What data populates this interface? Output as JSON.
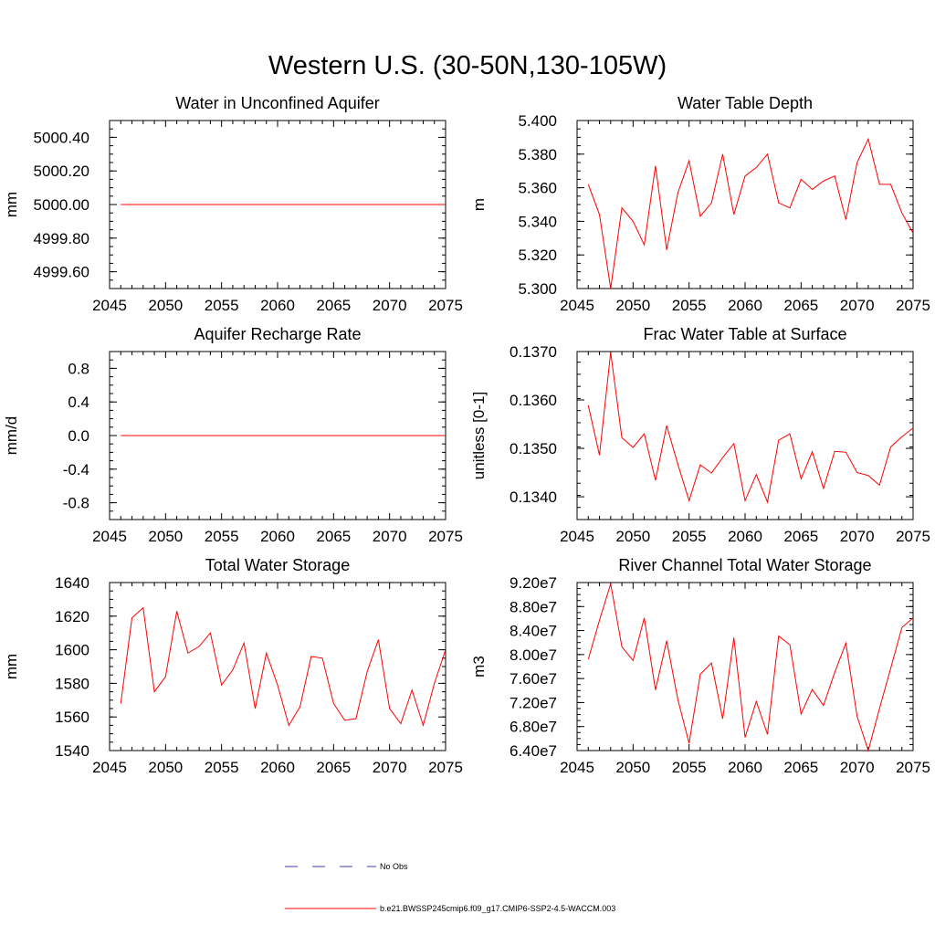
{
  "figure": {
    "title": "Western U.S. (30-50N,130-105W)"
  },
  "legend": {
    "entries": [
      {
        "label": "No Obs",
        "color": "#3b3bb0",
        "style": "dashed"
      },
      {
        "label": "b.e21.BWSSP245cmip6.f09_g17.CMIP6-SSP2-4.5-WACCM.003",
        "color": "#ff0000",
        "style": "solid"
      }
    ]
  },
  "chart_data": [
    {
      "type": "line",
      "title": "Water in Unconfined Aquifer",
      "ylabel": "mm",
      "xlim": [
        2045,
        2075
      ],
      "ylim": [
        4999.5,
        5000.5
      ],
      "x_ticks": [
        2045,
        2050,
        2055,
        2060,
        2065,
        2070,
        2075
      ],
      "y_ticks": [
        4999.6,
        4999.8,
        5000.0,
        5000.2,
        5000.4
      ],
      "y_tick_labels": [
        "4999.60",
        "4999.80",
        "5000.00",
        "5000.20",
        "5000.40"
      ],
      "series": [
        {
          "color": "#ff0000",
          "x": [
            2046,
            2047,
            2048,
            2049,
            2050,
            2051,
            2052,
            2053,
            2054,
            2055,
            2056,
            2057,
            2058,
            2059,
            2060,
            2061,
            2062,
            2063,
            2064,
            2065,
            2066,
            2067,
            2068,
            2069,
            2070,
            2071,
            2072,
            2073,
            2074,
            2075
          ],
          "y": [
            5000,
            5000,
            5000,
            5000,
            5000,
            5000,
            5000,
            5000,
            5000,
            5000,
            5000,
            5000,
            5000,
            5000,
            5000,
            5000,
            5000,
            5000,
            5000,
            5000,
            5000,
            5000,
            5000,
            5000,
            5000,
            5000,
            5000,
            5000,
            5000,
            5000
          ]
        }
      ]
    },
    {
      "type": "line",
      "title": "Water Table Depth",
      "ylabel": "m",
      "xlim": [
        2045,
        2075
      ],
      "ylim": [
        5.3,
        5.4
      ],
      "x_ticks": [
        2045,
        2050,
        2055,
        2060,
        2065,
        2070,
        2075
      ],
      "y_ticks": [
        5.3,
        5.32,
        5.34,
        5.36,
        5.38,
        5.4
      ],
      "y_tick_labels": [
        "5.300",
        "5.320",
        "5.340",
        "5.360",
        "5.380",
        "5.400"
      ],
      "series": [
        {
          "color": "#ff0000",
          "x": [
            2046,
            2047,
            2048,
            2049,
            2050,
            2051,
            2052,
            2053,
            2054,
            2055,
            2056,
            2057,
            2058,
            2059,
            2060,
            2061,
            2062,
            2063,
            2064,
            2065,
            2066,
            2067,
            2068,
            2069,
            2070,
            2071,
            2072,
            2073,
            2074,
            2075
          ],
          "y": [
            5.362,
            5.344,
            5.3,
            5.348,
            5.34,
            5.326,
            5.373,
            5.323,
            5.357,
            5.376,
            5.343,
            5.351,
            5.38,
            5.344,
            5.367,
            5.372,
            5.38,
            5.351,
            5.348,
            5.365,
            5.359,
            5.364,
            5.367,
            5.341,
            5.375,
            5.389,
            5.362,
            5.362,
            5.345,
            5.333
          ]
        }
      ]
    },
    {
      "type": "line",
      "title": "Aquifer Recharge Rate",
      "ylabel": "mm/d",
      "xlim": [
        2045,
        2075
      ],
      "ylim": [
        -1.0,
        1.0
      ],
      "x_ticks": [
        2045,
        2050,
        2055,
        2060,
        2065,
        2070,
        2075
      ],
      "y_ticks": [
        -0.8,
        -0.4,
        0.0,
        0.4,
        0.8
      ],
      "y_tick_labels": [
        "-0.8",
        "-0.4",
        "0.0",
        "0.4",
        "0.8"
      ],
      "series": [
        {
          "color": "#ff0000",
          "x": [
            2046,
            2047,
            2048,
            2049,
            2050,
            2051,
            2052,
            2053,
            2054,
            2055,
            2056,
            2057,
            2058,
            2059,
            2060,
            2061,
            2062,
            2063,
            2064,
            2065,
            2066,
            2067,
            2068,
            2069,
            2070,
            2071,
            2072,
            2073,
            2074,
            2075
          ],
          "y": [
            0,
            0,
            0,
            0,
            0,
            0,
            0,
            0,
            0,
            0,
            0,
            0,
            0,
            0,
            0,
            0,
            0,
            0,
            0,
            0,
            0,
            0,
            0,
            0,
            0,
            0,
            0,
            0,
            0,
            0
          ]
        }
      ]
    },
    {
      "type": "line",
      "title": "Frac Water Table at Surface",
      "ylabel": "unitless [0-1]",
      "xlim": [
        2045,
        2075
      ],
      "ylim": [
        0.13353,
        0.137
      ],
      "x_ticks": [
        2045,
        2050,
        2055,
        2060,
        2065,
        2070,
        2075
      ],
      "y_ticks": [
        0.134,
        0.135,
        0.136,
        0.137
      ],
      "y_tick_labels": [
        "0.1340",
        "0.1350",
        "0.1360",
        "0.1370"
      ],
      "series": [
        {
          "color": "#ff0000",
          "x": [
            2046,
            2047,
            2048,
            2049,
            2050,
            2051,
            2052,
            2053,
            2054,
            2055,
            2056,
            2057,
            2058,
            2059,
            2060,
            2061,
            2062,
            2063,
            2064,
            2065,
            2066,
            2067,
            2068,
            2069,
            2070,
            2071,
            2072,
            2073,
            2074,
            2075
          ],
          "y": [
            0.13589,
            0.13486,
            0.13698,
            0.13522,
            0.13502,
            0.1353,
            0.13434,
            0.13547,
            0.13467,
            0.13392,
            0.13466,
            0.13449,
            0.13481,
            0.1351,
            0.13392,
            0.13446,
            0.13389,
            0.13517,
            0.1353,
            0.13437,
            0.13493,
            0.13417,
            0.13494,
            0.13492,
            0.1345,
            0.13444,
            0.13424,
            0.13503,
            0.13524,
            0.13542
          ]
        }
      ]
    },
    {
      "type": "line",
      "title": "Total Water Storage",
      "ylabel": "mm",
      "xlim": [
        2045,
        2075
      ],
      "ylim": [
        1540,
        1640
      ],
      "x_ticks": [
        2045,
        2050,
        2055,
        2060,
        2065,
        2070,
        2075
      ],
      "y_ticks": [
        1540,
        1560,
        1580,
        1600,
        1620,
        1640
      ],
      "y_tick_labels": [
        "1540",
        "1560",
        "1580",
        "1600",
        "1620",
        "1640"
      ],
      "series": [
        {
          "color": "#ff0000",
          "x": [
            2046,
            2047,
            2048,
            2049,
            2050,
            2051,
            2052,
            2053,
            2054,
            2055,
            2056,
            2057,
            2058,
            2059,
            2060,
            2061,
            2062,
            2063,
            2064,
            2065,
            2066,
            2067,
            2068,
            2069,
            2070,
            2071,
            2072,
            2073,
            2074,
            2075
          ],
          "y": [
            1568,
            1619,
            1625,
            1575,
            1584,
            1623,
            1598,
            1602,
            1610,
            1579,
            1588,
            1604,
            1565,
            1598,
            1579,
            1555,
            1566,
            1596,
            1595,
            1568,
            1558,
            1559,
            1587,
            1606,
            1565,
            1556,
            1576,
            1555,
            1580,
            1600
          ]
        }
      ]
    },
    {
      "type": "line",
      "title": "River Channel Total Water Storage",
      "ylabel": "m3",
      "xlim": [
        2045,
        2075
      ],
      "ylim": [
        64000000,
        92000000
      ],
      "x_ticks": [
        2045,
        2050,
        2055,
        2060,
        2065,
        2070,
        2075
      ],
      "y_ticks": [
        64000000,
        68000000,
        72000000,
        76000000,
        80000000,
        84000000,
        88000000,
        92000000
      ],
      "y_tick_labels": [
        "6.40e7",
        "6.80e7",
        "7.20e7",
        "7.60e7",
        "8.00e7",
        "8.40e7",
        "8.80e7",
        "9.20e7"
      ],
      "series": [
        {
          "color": "#ff0000",
          "x": [
            2046,
            2047,
            2048,
            2049,
            2050,
            2051,
            2052,
            2053,
            2054,
            2055,
            2056,
            2057,
            2058,
            2059,
            2060,
            2061,
            2062,
            2063,
            2064,
            2065,
            2066,
            2067,
            2068,
            2069,
            2070,
            2071,
            2072,
            2073,
            2074,
            2075
          ],
          "y": [
            79200000,
            85700000,
            91800000,
            81300000,
            79000000,
            86100000,
            74100000,
            82300000,
            72500000,
            65200000,
            76700000,
            78600000,
            69300000,
            82800000,
            66200000,
            72200000,
            66700000,
            83100000,
            81600000,
            70100000,
            74200000,
            71500000,
            77000000,
            81900000,
            69700000,
            64000000,
            71000000,
            77700000,
            84500000,
            86100000
          ]
        }
      ]
    }
  ]
}
